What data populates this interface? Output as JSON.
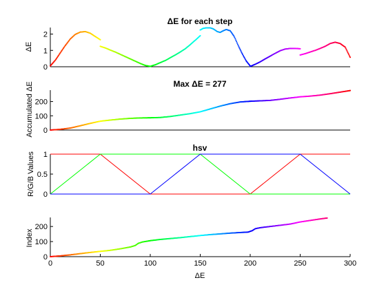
{
  "chart_data": [
    {
      "type": "scatter",
      "title": "ΔE for each step",
      "ylabel": "ΔE",
      "xlim": [
        0,
        300
      ],
      "ylim": [
        0,
        2.4
      ],
      "yticks": [
        0,
        1,
        2
      ],
      "color_scale": "hsv",
      "segments": [
        {
          "x": [
            0,
            5,
            10,
            15,
            20,
            25,
            30,
            35,
            40,
            45,
            50
          ],
          "y": [
            0.05,
            0.4,
            0.85,
            1.3,
            1.7,
            1.98,
            2.12,
            2.15,
            2.05,
            1.85,
            1.65
          ]
        },
        {
          "x": [
            50,
            55,
            60,
            65,
            70,
            75,
            80,
            85,
            90,
            95,
            100
          ],
          "y": [
            1.25,
            1.15,
            1.02,
            0.9,
            0.76,
            0.62,
            0.48,
            0.34,
            0.2,
            0.08,
            0.02
          ]
        },
        {
          "x": [
            100,
            105,
            110,
            115,
            120,
            125,
            130,
            135,
            140,
            145,
            150
          ],
          "y": [
            0.02,
            0.12,
            0.25,
            0.38,
            0.55,
            0.72,
            0.9,
            1.1,
            1.35,
            1.62,
            1.9
          ]
        },
        {
          "x": [
            150,
            153,
            156,
            160,
            163,
            167,
            170,
            173,
            176,
            180,
            184,
            188,
            192,
            196,
            200
          ],
          "y": [
            2.25,
            2.35,
            2.38,
            2.38,
            2.32,
            2.15,
            2.1,
            2.2,
            2.28,
            2.2,
            1.85,
            1.3,
            0.8,
            0.35,
            0.05
          ]
        },
        {
          "x": [
            200,
            205,
            210,
            215,
            220,
            225,
            230,
            235,
            240,
            245,
            250
          ],
          "y": [
            0.02,
            0.15,
            0.3,
            0.48,
            0.65,
            0.82,
            0.98,
            1.08,
            1.12,
            1.12,
            1.1
          ]
        },
        {
          "x": [
            250,
            255,
            260,
            265,
            270,
            275,
            280,
            285,
            290,
            295,
            300
          ],
          "y": [
            0.72,
            0.8,
            0.9,
            1.0,
            1.12,
            1.25,
            1.42,
            1.5,
            1.42,
            1.2,
            0.58
          ]
        }
      ]
    },
    {
      "type": "scatter",
      "title": "Max  ΔE = 277",
      "ylabel": "Accumulated ΔE",
      "xlim": [
        0,
        300
      ],
      "ylim": [
        0,
        280
      ],
      "yticks": [
        0,
        100,
        200
      ],
      "color_scale": "hsv",
      "segments": [
        {
          "x": [
            0,
            10,
            20,
            30,
            40,
            50,
            60,
            70,
            80,
            90,
            100,
            110,
            120,
            130,
            140,
            150,
            160,
            170,
            180,
            190,
            200,
            210,
            220,
            230,
            240,
            250,
            260,
            270,
            280,
            290,
            300
          ],
          "y": [
            0,
            5,
            14,
            30,
            47,
            62,
            70,
            77,
            82,
            85,
            86,
            88,
            95,
            105,
            115,
            128,
            148,
            168,
            185,
            197,
            202,
            205,
            208,
            216,
            225,
            233,
            238,
            245,
            255,
            266,
            277
          ]
        }
      ]
    },
    {
      "type": "line",
      "title": "hsv",
      "ylabel": "R/G/B Values",
      "xlim": [
        0,
        300
      ],
      "ylim": [
        0,
        1
      ],
      "yticks": [
        0,
        0.5,
        1
      ],
      "series": [
        {
          "color": "#ff0000",
          "x": [
            0,
            50,
            100,
            200,
            250,
            300
          ],
          "y": [
            1,
            1,
            0,
            0,
            1,
            1
          ]
        },
        {
          "color": "#00ff00",
          "x": [
            0,
            50,
            150,
            200,
            300
          ],
          "y": [
            0,
            1,
            1,
            0,
            0
          ]
        },
        {
          "color": "#0000ff",
          "x": [
            0,
            100,
            150,
            250,
            300
          ],
          "y": [
            0,
            0,
            1,
            1,
            0
          ]
        }
      ]
    },
    {
      "type": "scatter",
      "title": "",
      "ylabel": "Index",
      "xlabel": "ΔE",
      "xlim": [
        0,
        300
      ],
      "ylim": [
        0,
        260
      ],
      "yticks": [
        0,
        100,
        200
      ],
      "xticks": [
        0,
        50,
        100,
        150,
        200,
        250,
        300
      ],
      "color_scale": "hsv",
      "segments": [
        {
          "x": [
            0,
            10,
            20,
            30,
            40,
            50,
            60,
            70,
            80,
            85,
            88,
            92,
            100,
            110,
            120,
            130,
            140,
            150,
            160,
            170,
            180,
            190,
            198,
            202,
            205,
            210,
            220,
            230,
            240,
            250,
            260,
            270,
            277
          ],
          "y": [
            0,
            5,
            12,
            20,
            28,
            35,
            42,
            52,
            64,
            74,
            88,
            97,
            106,
            114,
            120,
            126,
            133,
            140,
            146,
            151,
            156,
            160,
            163,
            172,
            185,
            192,
            200,
            208,
            216,
            230,
            240,
            250,
            256
          ]
        }
      ]
    }
  ]
}
